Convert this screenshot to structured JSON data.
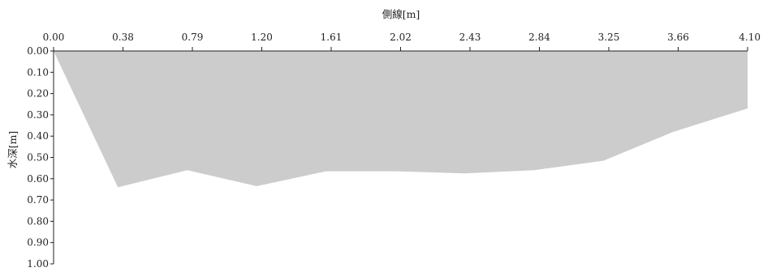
{
  "chart_data": {
    "type": "area",
    "xlabel": "側線[m]",
    "ylabel": "水深[m]",
    "x_ticks": [
      "0.00",
      "0.38",
      "0.79",
      "1.20",
      "1.61",
      "2.02",
      "2.43",
      "2.84",
      "3.25",
      "3.66",
      "4.10"
    ],
    "y_ticks": [
      "0.00",
      "0.10",
      "0.20",
      "0.30",
      "0.40",
      "0.50",
      "0.60",
      "0.70",
      "0.80",
      "0.90",
      "1.00"
    ],
    "xlim": [
      0,
      4.1
    ],
    "ylim": [
      0,
      1.0
    ],
    "y_inverted": true,
    "x_axis_position": "top",
    "grid": false,
    "series": [
      {
        "x": [
          0.0,
          0.38,
          0.79,
          1.2,
          1.61,
          2.02,
          2.43,
          2.84,
          3.25,
          3.66,
          4.1
        ],
        "y": [
          0.0,
          0.64,
          0.56,
          0.635,
          0.565,
          0.565,
          0.575,
          0.56,
          0.515,
          0.38,
          0.27
        ],
        "color": "#cccccd"
      }
    ],
    "axis_color": "#222222"
  }
}
